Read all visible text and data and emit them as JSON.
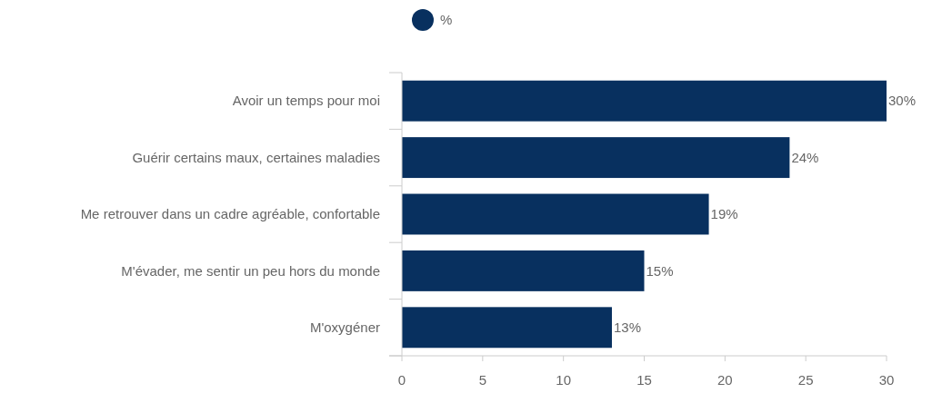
{
  "chart_data": {
    "type": "bar",
    "orientation": "horizontal",
    "categories": [
      "Avoir un temps pour moi",
      "Guérir certains maux, certaines maladies",
      "Me retrouver dans un cadre agréable, confortable",
      "M'évader, me sentir un peu hors du monde",
      "M'oxygéner"
    ],
    "series": [
      {
        "name": "%",
        "color": "#08305f",
        "values": [
          30,
          24,
          19,
          15,
          13
        ],
        "value_labels": [
          "30%",
          "24%",
          "19%",
          "15%",
          "13%"
        ]
      }
    ],
    "xlim": [
      0,
      30
    ],
    "xticks": [
      0,
      5,
      10,
      15,
      20,
      25,
      30
    ],
    "grid": false,
    "legend": "top"
  }
}
